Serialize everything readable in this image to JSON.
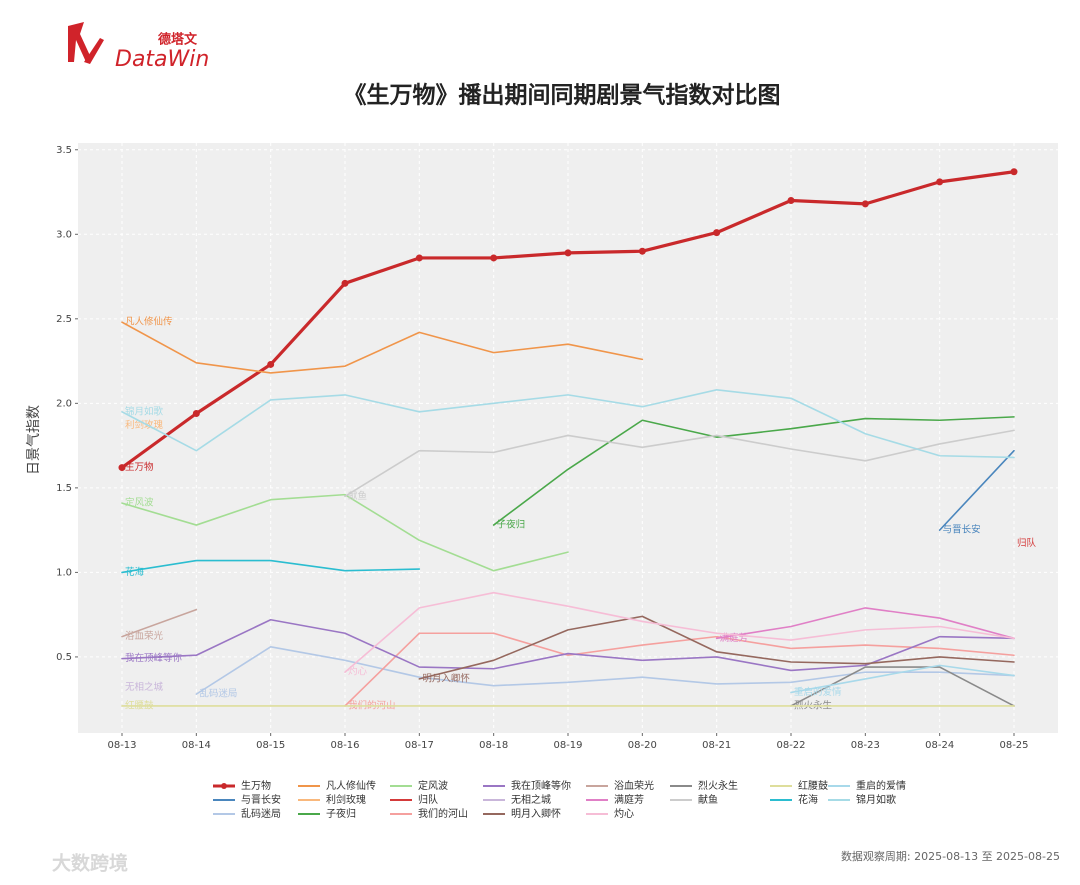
{
  "logo": {
    "cn": "德塔文",
    "en": "DataWin"
  },
  "watermark": "大数跨境",
  "footer": "数据观察周期: 2025-08-13 至 2025-08-25",
  "chart_data": {
    "type": "line",
    "title": "《生万物》播出期间同期剧景气指数对比图",
    "y_label": "日景气指数",
    "categories": [
      "08-13",
      "08-14",
      "08-15",
      "08-16",
      "08-17",
      "08-18",
      "08-19",
      "08-20",
      "08-21",
      "08-22",
      "08-23",
      "08-24",
      "08-25"
    ],
    "ylim": [
      0.05,
      3.54
    ],
    "yticks": [
      0.5,
      {
        "value": 1,
        "label": "1.0"
      },
      1.5,
      {
        "value": 2,
        "label": "2.0"
      },
      2.5,
      {
        "value": 3,
        "label": "3.0"
      },
      3.5
    ],
    "grid": true,
    "series": [
      {
        "name": "生万物",
        "color": "#c9292b",
        "marker": true,
        "values": [
          1.62,
          1.94,
          2.23,
          2.71,
          2.86,
          2.86,
          2.89,
          2.9,
          3.01,
          3.2,
          3.18,
          3.31,
          3.37
        ]
      },
      {
        "name": "与晋长安",
        "color": "#4a86bd",
        "values": [
          null,
          null,
          null,
          null,
          null,
          null,
          null,
          null,
          null,
          null,
          null,
          1.25,
          1.72
        ]
      },
      {
        "name": "乱码迷局",
        "color": "#b3c8e6",
        "values": [
          null,
          0.28,
          0.56,
          0.48,
          0.38,
          0.33,
          0.35,
          0.38,
          0.34,
          0.35,
          0.41,
          0.41,
          0.39
        ]
      },
      {
        "name": "凡人修仙传",
        "color": "#f0954a",
        "values": [
          2.48,
          2.24,
          2.18,
          2.22,
          2.42,
          2.3,
          2.35,
          2.26,
          null,
          null,
          null,
          null,
          null
        ]
      },
      {
        "name": "利剑玫瑰",
        "color": "#f9b87c",
        "values": [
          1.87,
          null,
          null,
          null,
          null,
          null,
          null,
          null,
          null,
          null,
          null,
          null,
          null
        ]
      },
      {
        "name": "子夜归",
        "color": "#4aa84a",
        "values": [
          null,
          null,
          null,
          null,
          null,
          1.28,
          1.61,
          1.9,
          1.8,
          1.85,
          1.91,
          1.9,
          1.92
        ]
      },
      {
        "name": "定风波",
        "color": "#a3dd93",
        "values": [
          1.41,
          1.28,
          1.43,
          1.46,
          1.19,
          1.01,
          1.12,
          null,
          null,
          null,
          null,
          null,
          null
        ]
      },
      {
        "name": "归队",
        "color": "#d43a3a",
        "values": [
          null,
          null,
          null,
          null,
          null,
          null,
          null,
          null,
          null,
          null,
          null,
          null,
          1.17
        ]
      },
      {
        "name": "我们的河山",
        "color": "#f5a09e",
        "values": [
          null,
          null,
          null,
          0.21,
          0.64,
          0.64,
          0.51,
          0.57,
          0.62,
          0.55,
          0.57,
          0.55,
          0.51
        ]
      },
      {
        "name": "我在顶峰等你",
        "color": "#9a76c4",
        "values": [
          0.49,
          0.51,
          0.72,
          0.64,
          0.44,
          0.43,
          0.52,
          0.48,
          0.5,
          0.42,
          0.45,
          0.62,
          0.61
        ]
      },
      {
        "name": "无相之城",
        "color": "#c9b6da",
        "values": [
          0.32,
          null,
          null,
          null,
          null,
          null,
          null,
          null,
          null,
          null,
          null,
          null,
          null
        ]
      },
      {
        "name": "明月入卿怀",
        "color": "#95685e",
        "values": [
          null,
          null,
          null,
          null,
          0.37,
          0.48,
          0.66,
          0.74,
          0.53,
          0.47,
          0.46,
          0.5,
          0.47
        ]
      },
      {
        "name": "浴血荣光",
        "color": "#c8a59d",
        "values": [
          0.62,
          0.78,
          null,
          null,
          null,
          null,
          null,
          null,
          null,
          null,
          null,
          null,
          null
        ]
      },
      {
        "name": "满庭芳",
        "color": "#e07fc6",
        "values": [
          null,
          null,
          null,
          null,
          null,
          null,
          null,
          null,
          0.61,
          0.68,
          0.79,
          0.73,
          0.61
        ]
      },
      {
        "name": "灼心",
        "color": "#f6bdd6",
        "values": [
          null,
          null,
          null,
          0.41,
          0.79,
          0.88,
          0.8,
          0.71,
          0.64,
          0.6,
          0.66,
          0.68,
          0.61
        ]
      },
      {
        "name": "烈火永生",
        "color": "#8a8a8a",
        "values": [
          null,
          null,
          null,
          null,
          null,
          null,
          null,
          null,
          null,
          0.21,
          0.44,
          0.44,
          0.21
        ]
      },
      {
        "name": "献鱼",
        "color": "#cccccc",
        "values": [
          null,
          null,
          null,
          1.45,
          1.72,
          1.71,
          1.81,
          1.74,
          1.81,
          1.73,
          1.66,
          1.76,
          1.84
        ]
      },
      {
        "name": "红腰鼓",
        "color": "#dede9c",
        "values": [
          0.21,
          0.21,
          0.21,
          0.21,
          0.21,
          0.21,
          0.21,
          0.21,
          0.21,
          0.21,
          0.21,
          0.21,
          0.21
        ]
      },
      {
        "name": "花海",
        "color": "#2bbdd0",
        "values": [
          1.0,
          1.07,
          1.07,
          1.01,
          1.02,
          null,
          null,
          null,
          null,
          null,
          null,
          null,
          null
        ]
      },
      {
        "name": "重启的爱情",
        "color": "#a8d9ea",
        "values": [
          null,
          null,
          null,
          null,
          null,
          null,
          null,
          null,
          null,
          0.29,
          0.37,
          0.45,
          0.39
        ]
      },
      {
        "name": "锦月如歌",
        "color": "#a6dbe6",
        "values": [
          1.95,
          1.72,
          2.02,
          2.05,
          1.95,
          2.0,
          2.05,
          1.98,
          2.08,
          2.03,
          1.82,
          1.69,
          1.68
        ]
      }
    ]
  }
}
